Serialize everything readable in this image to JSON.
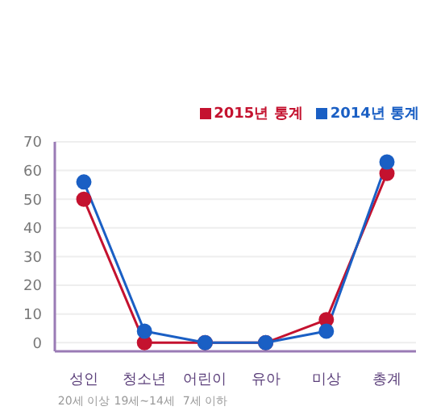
{
  "chart_data": {
    "type": "line",
    "categories": [
      "성인\n20세 이상",
      "청소년\n19세~14세",
      "어린이\n7세 이하",
      "유아",
      "미상",
      "총계"
    ],
    "series": [
      {
        "name": "2015년 통계",
        "color": "#c4122f",
        "values": [
          50,
          0,
          0,
          0,
          8,
          59
        ]
      },
      {
        "name": "2014년 통계",
        "color": "#1a5fc4",
        "values": [
          56,
          4,
          0,
          0,
          4,
          63
        ]
      }
    ],
    "ylim": [
      -3,
      70
    ],
    "yticks": [
      0,
      10,
      20,
      30,
      40,
      50,
      60,
      70
    ],
    "grid": "y",
    "legend": "top right",
    "marker": "circle",
    "line_style": "solid"
  }
}
